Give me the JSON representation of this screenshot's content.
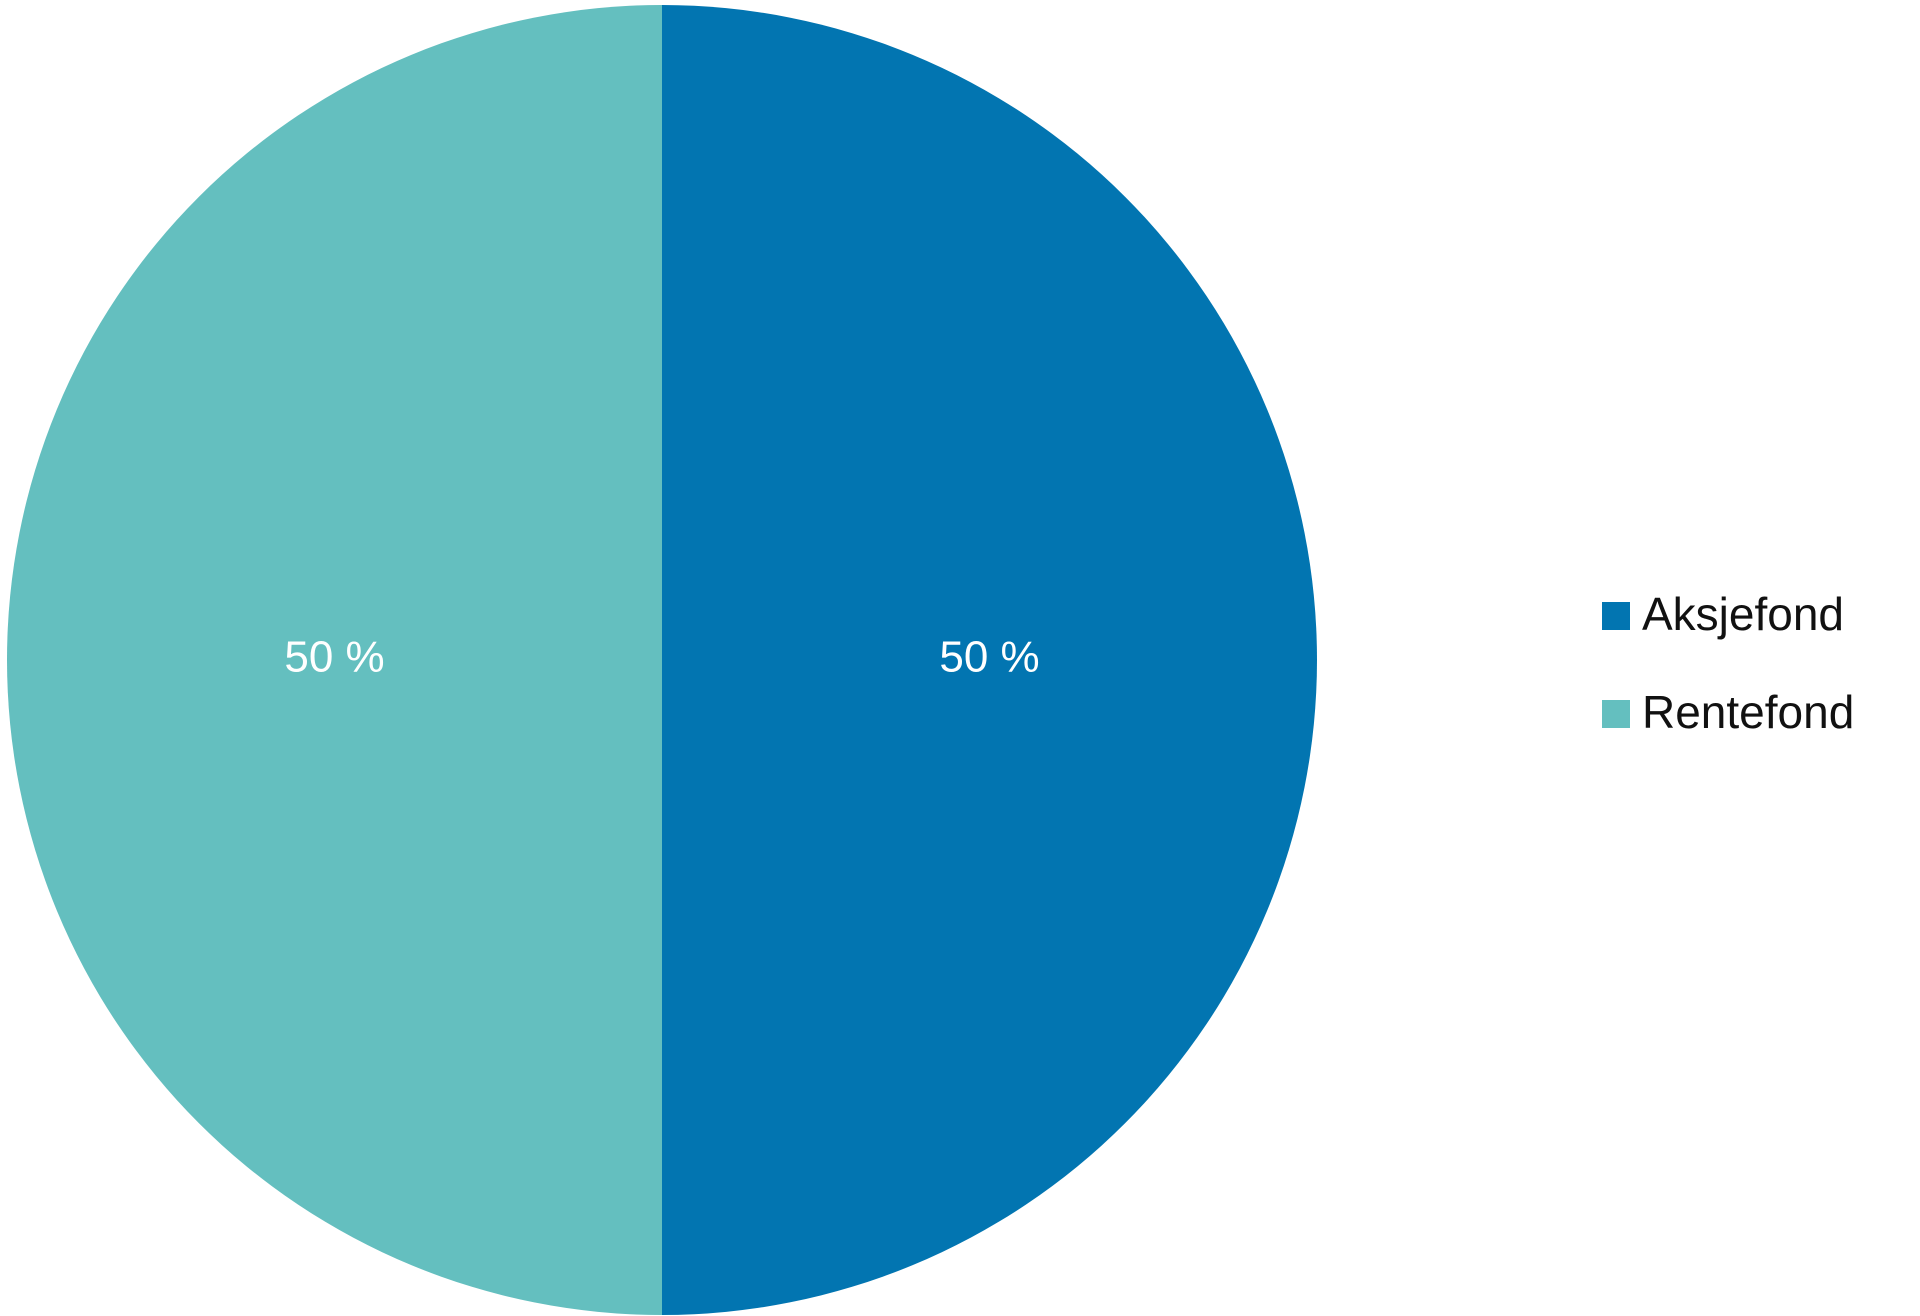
{
  "chart_data": {
    "type": "pie",
    "categories": [
      "Aksjefond",
      "Rentefond"
    ],
    "values": [
      50,
      50
    ],
    "value_labels": [
      "50 %",
      "50 %"
    ],
    "colors": [
      "#0275b1",
      "#64bfbf"
    ],
    "legend": "right"
  }
}
